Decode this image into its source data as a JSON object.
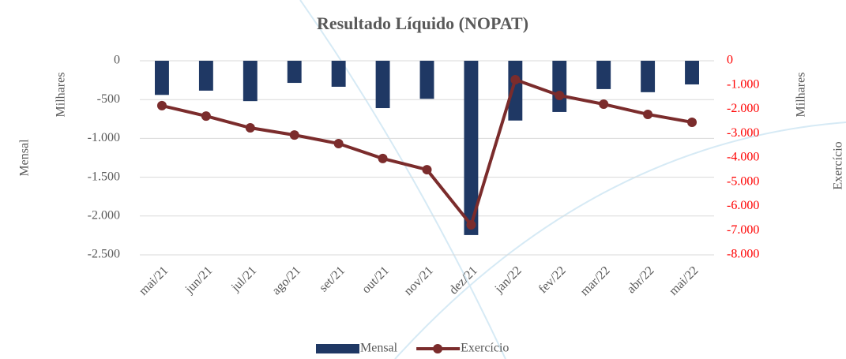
{
  "chart_data": {
    "type": "bar-line",
    "title": "Resultado Líquido (NOPAT)",
    "y_label": "Mensal",
    "y2_label": "Exercício",
    "y_units": "Milhares",
    "y2_units": "Milhares",
    "categories": [
      "mai/21",
      "jun/21",
      "jul/21",
      "ago/21",
      "set/21",
      "out/21",
      "nov/21",
      "dez/21",
      "jan/22",
      "fev/22",
      "mar/22",
      "abr/22",
      "mai/22"
    ],
    "series": [
      {
        "name": "Mensal",
        "type": "bar",
        "color": "#1f3864",
        "values": [
          -440,
          -385,
          -520,
          -285,
          -335,
          -610,
          -490,
          -2245,
          -770,
          -660,
          -365,
          -405,
          -305
        ]
      },
      {
        "name": "Exercício",
        "type": "line",
        "axis": "y2",
        "color": "#7b2c2c",
        "values": [
          -1850,
          -2280,
          -2765,
          -3060,
          -3415,
          -4030,
          -4490,
          -6765,
          -780,
          -1430,
          -1790,
          -2210,
          -2535
        ]
      }
    ],
    "ylim": [
      -2500,
      0
    ],
    "yticks": [
      {
        "value": -2500,
        "label": "-2.500"
      },
      {
        "value": -2000,
        "label": "-2.000"
      },
      {
        "value": -1500,
        "label": "-1.500"
      },
      {
        "value": -1000,
        "label": "-1.000"
      },
      -500,
      0
    ],
    "y2lim": [
      -8000,
      0
    ],
    "y2ticks": [
      {
        "value": -8000,
        "label": "-8.000"
      },
      {
        "value": -7000,
        "label": "-7.000"
      },
      {
        "value": -6000,
        "label": "-6.000"
      },
      {
        "value": -5000,
        "label": "-5.000"
      },
      {
        "value": -4000,
        "label": "-4.000"
      },
      {
        "value": -3000,
        "label": "-3.000"
      },
      {
        "value": -2000,
        "label": "-2.000"
      },
      {
        "value": -1000,
        "label": "-1.000"
      },
      0
    ],
    "y2tick_color": "#ff0000",
    "grid": true,
    "legend": "bottom"
  }
}
